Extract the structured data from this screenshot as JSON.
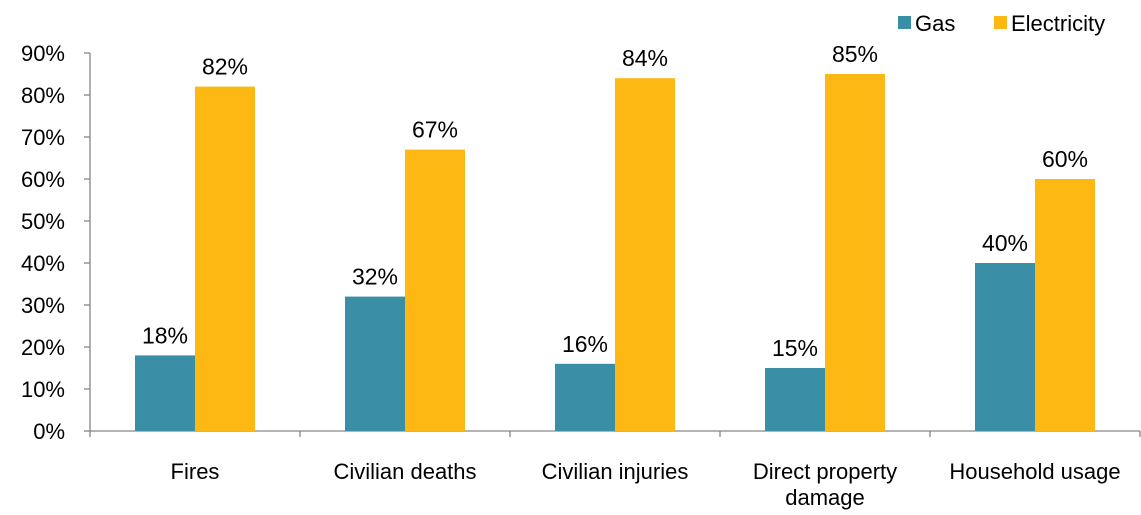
{
  "chart_data": {
    "type": "bar",
    "title": "",
    "xlabel": "",
    "ylabel": "",
    "categories": [
      [
        "Fires"
      ],
      [
        "Civilian deaths"
      ],
      [
        "Civilian injuries"
      ],
      [
        "Direct property",
        "damage"
      ],
      [
        "Household usage"
      ]
    ],
    "series": [
      {
        "name": "Gas",
        "values": [
          18,
          32,
          16,
          15,
          40
        ],
        "color": "#3A8EA6"
      },
      {
        "name": "Electricity",
        "values": [
          82,
          67,
          84,
          85,
          60
        ],
        "color": "#FDB813"
      }
    ],
    "ylim": [
      0,
      90
    ],
    "yticks": [
      0,
      10,
      20,
      30,
      40,
      50,
      60,
      70,
      80,
      90
    ],
    "value_suffix": "%",
    "grid": false,
    "legend_position": "top-right"
  }
}
